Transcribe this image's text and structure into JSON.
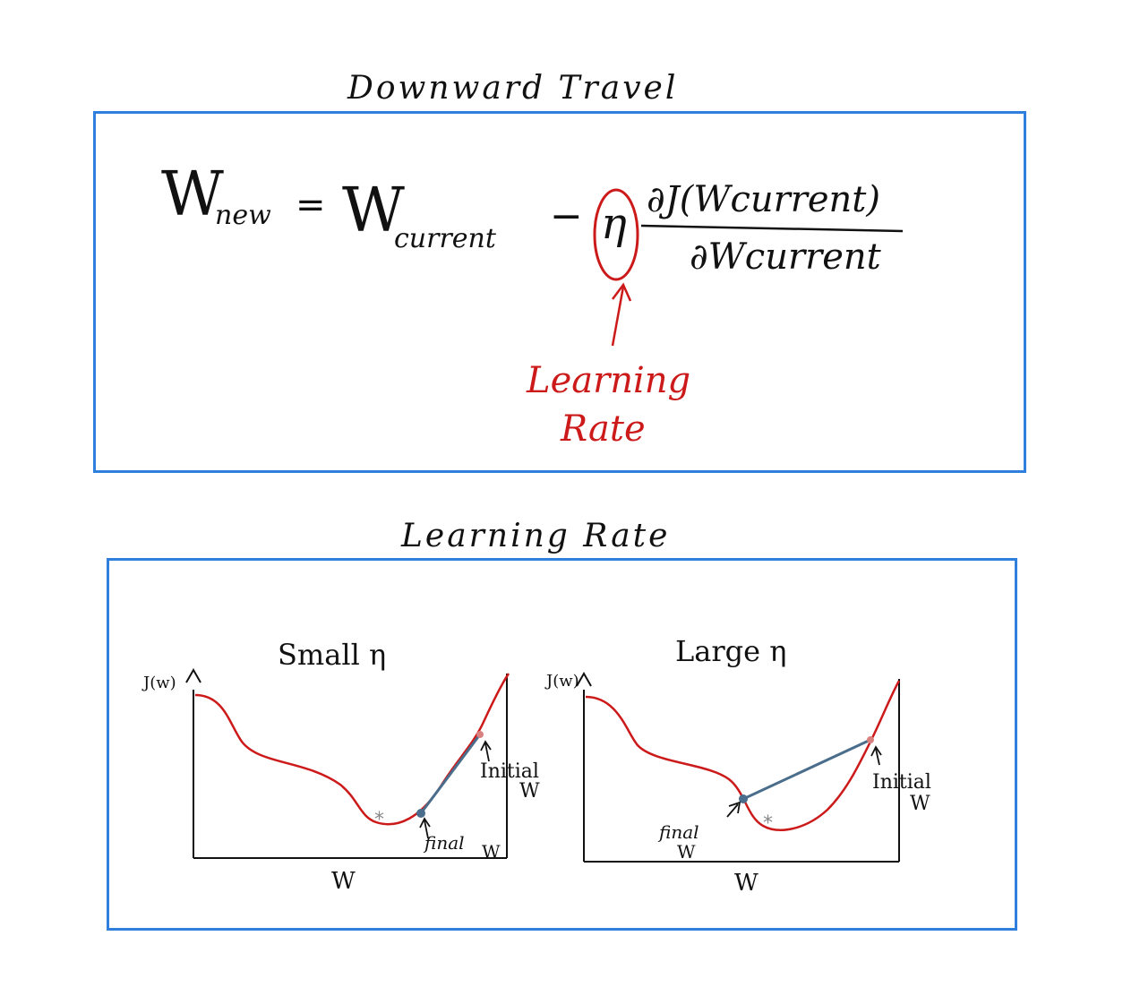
{
  "top_section": {
    "title": "Downward Travel",
    "equation": {
      "w_symbol": "W",
      "new_subscript": "new",
      "equals": "=",
      "current_subscript": "current",
      "minus": "−",
      "eta": "η",
      "numerator": "∂J(Wcurrent)",
      "denominator": "∂Wcurrent"
    },
    "annotation": {
      "line1": "Learning",
      "line2": "Rate",
      "color": "#cc1a1a"
    }
  },
  "bottom_section": {
    "title": "Learning Rate",
    "panels": [
      {
        "heading": "Small η",
        "y_axis_label": "J(w)",
        "x_axis_label": "W",
        "initial_label_line1": "Initial",
        "initial_label_line2": "W",
        "final_label_line1": "final",
        "final_label_line2": "W",
        "min_marker": "*"
      },
      {
        "heading": "Large η",
        "y_axis_label": "J(w)",
        "x_axis_label": "W",
        "initial_label_line1": "Initial",
        "initial_label_line2": "W",
        "final_label_line1": "final",
        "final_label_line2": "W",
        "min_marker": "*"
      }
    ]
  },
  "colors": {
    "panel_border": "#2f80dd",
    "curve": "#cc1a1a",
    "step_line": "#4a6d8c",
    "annotation": "#cc1a1a",
    "ink": "#111111"
  }
}
